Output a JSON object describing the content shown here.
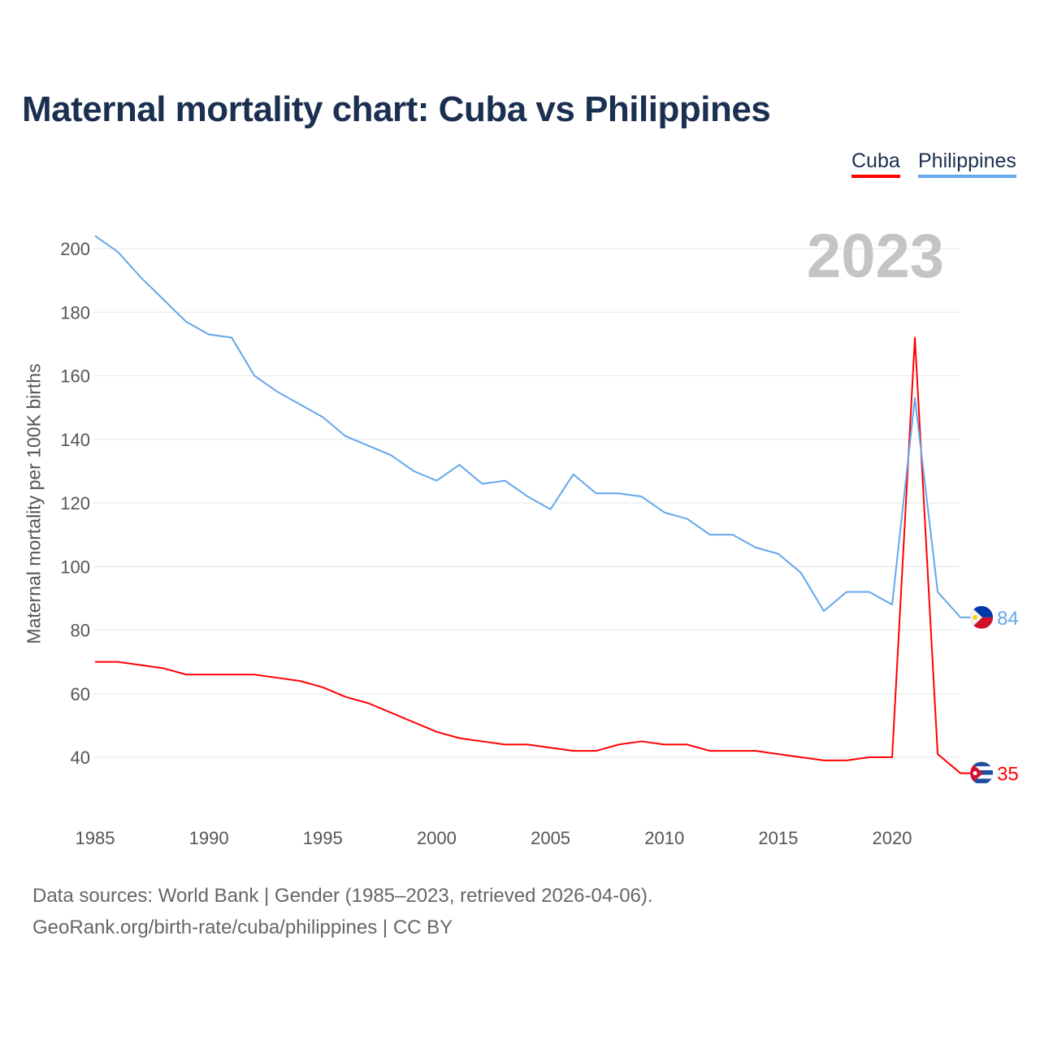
{
  "title": "Maternal mortality chart: Cuba vs Philippines",
  "year_label": "2023",
  "footer": {
    "line1": "Data sources: World Bank | Gender (1985–2023, retrieved 2026-04-06).",
    "line2": "GeoRank.org/birth-rate/cuba/philippines | CC BY"
  },
  "chart_data": {
    "type": "line",
    "title": "Maternal mortality chart: Cuba vs Philippines",
    "xlabel": "",
    "ylabel": "Maternal mortality per 100K births",
    "xlim": [
      1985,
      2023
    ],
    "ylim": [
      40,
      200
    ],
    "x_ticks": [
      1985,
      1990,
      1995,
      2000,
      2005,
      2010,
      2015,
      2020
    ],
    "y_ticks": [
      40,
      60,
      80,
      100,
      120,
      140,
      160,
      180,
      200
    ],
    "grid": true,
    "legend_position": "top-right",
    "x": [
      1985,
      1986,
      1987,
      1988,
      1989,
      1990,
      1991,
      1992,
      1993,
      1994,
      1995,
      1996,
      1997,
      1998,
      1999,
      2000,
      2001,
      2002,
      2003,
      2004,
      2005,
      2006,
      2007,
      2008,
      2009,
      2010,
      2011,
      2012,
      2013,
      2014,
      2015,
      2016,
      2017,
      2018,
      2019,
      2020,
      2021,
      2022,
      2023
    ],
    "series": [
      {
        "name": "Cuba",
        "color": "#ff0000",
        "end_label": "35",
        "values": [
          70,
          70,
          69,
          68,
          66,
          66,
          66,
          66,
          65,
          64,
          62,
          59,
          57,
          54,
          51,
          48,
          46,
          45,
          44,
          44,
          43,
          42,
          42,
          44,
          45,
          44,
          44,
          42,
          42,
          42,
          41,
          40,
          39,
          39,
          40,
          40,
          172,
          41,
          35
        ]
      },
      {
        "name": "Philippines",
        "color": "#63a7ec",
        "end_label": "84",
        "values": [
          204,
          199,
          191,
          184,
          177,
          173,
          172,
          160,
          155,
          151,
          147,
          141,
          138,
          135,
          130,
          127,
          132,
          126,
          127,
          122,
          118,
          129,
          123,
          123,
          122,
          117,
          115,
          110,
          110,
          106,
          104,
          98,
          86,
          92,
          92,
          88,
          153,
          92,
          84
        ]
      }
    ]
  }
}
